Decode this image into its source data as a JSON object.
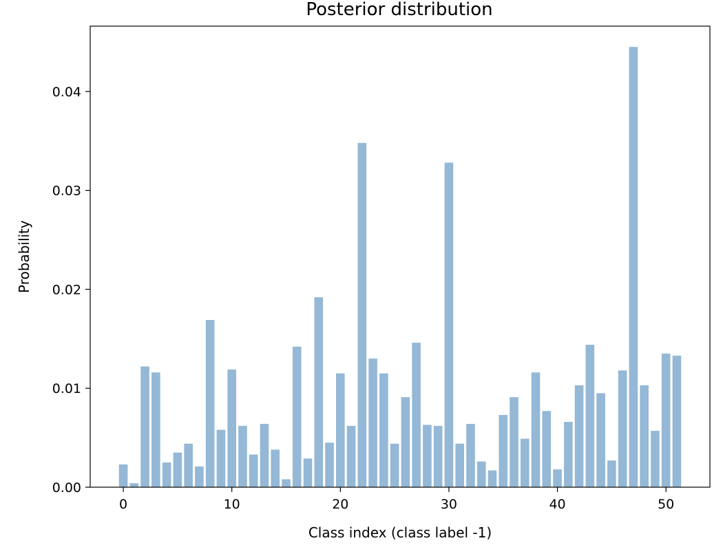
{
  "chart_data": {
    "type": "bar",
    "title": "Posterior distribution",
    "xlabel": "Class index (class label -1)",
    "ylabel": "Probability",
    "x": [
      0,
      1,
      2,
      3,
      4,
      5,
      6,
      7,
      8,
      9,
      10,
      11,
      12,
      13,
      14,
      15,
      16,
      17,
      18,
      19,
      20,
      21,
      22,
      23,
      24,
      25,
      26,
      27,
      28,
      29,
      30,
      31,
      32,
      33,
      34,
      35,
      36,
      37,
      38,
      39,
      40,
      41,
      42,
      43,
      44,
      45,
      46,
      47,
      48,
      49,
      50,
      51
    ],
    "values": [
      0.0023,
      0.0004,
      0.0122,
      0.0116,
      0.0025,
      0.0035,
      0.0044,
      0.0021,
      0.0169,
      0.0058,
      0.0119,
      0.0062,
      0.0033,
      0.0064,
      0.0038,
      0.0008,
      0.0142,
      0.0029,
      0.0192,
      0.0045,
      0.0115,
      0.0062,
      0.0348,
      0.013,
      0.0115,
      0.0044,
      0.0091,
      0.0146,
      0.0063,
      0.0062,
      0.0328,
      0.0044,
      0.0064,
      0.0026,
      0.0017,
      0.0073,
      0.0091,
      0.0049,
      0.0116,
      0.0077,
      0.0018,
      0.0066,
      0.0103,
      0.0144,
      0.0095,
      0.0027,
      0.0118,
      0.0445,
      0.0103,
      0.0057,
      0.0135,
      0.0133
    ],
    "xlim": [
      -3.05,
      54.05
    ],
    "ylim": [
      0,
      0.0466
    ],
    "xticks": [
      0,
      10,
      20,
      30,
      40,
      50
    ],
    "xtick_labels": [
      "0",
      "10",
      "20",
      "30",
      "40",
      "50"
    ],
    "yticks": [
      0,
      0.01,
      0.02,
      0.03,
      0.04
    ],
    "ytick_labels": [
      "0.00",
      "0.01",
      "0.02",
      "0.03",
      "0.04"
    ],
    "bar_color": "#94b8d6",
    "grid": false,
    "legend": "none"
  }
}
